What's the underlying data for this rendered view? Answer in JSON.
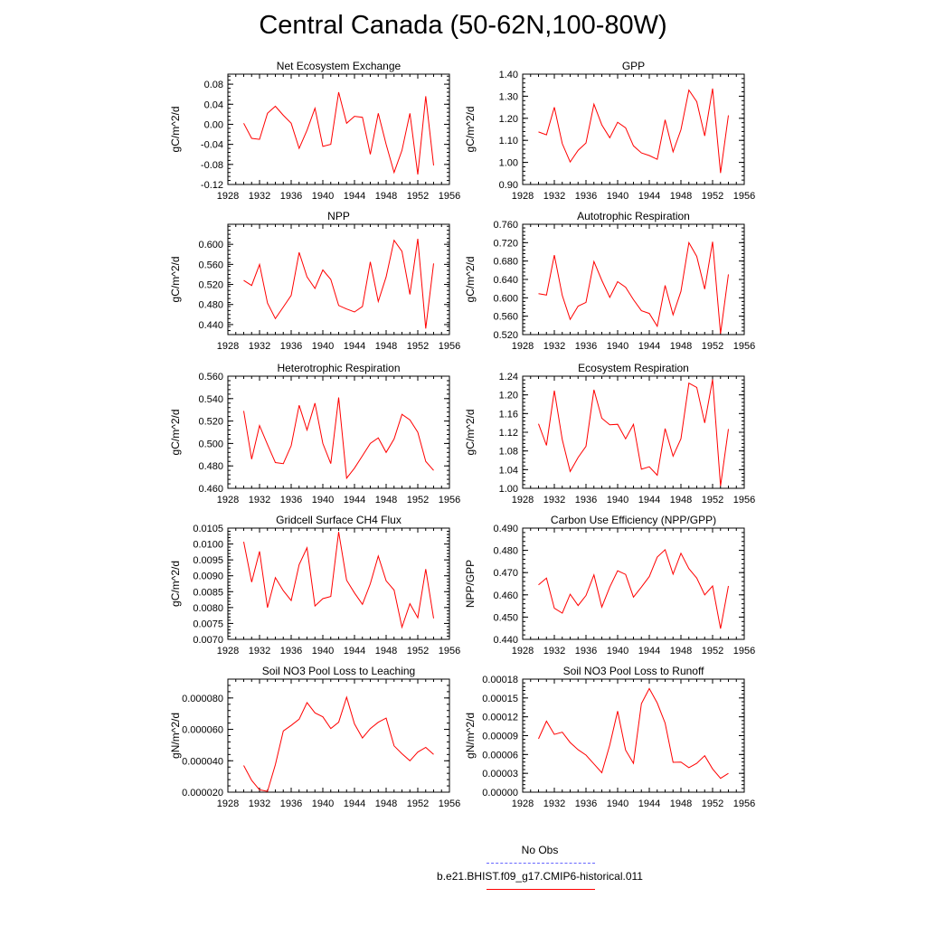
{
  "title": "Central Canada (50-62N,100-80W)",
  "legend": {
    "obs_label": "No Obs",
    "obs_color": "#6666ff",
    "model_label": "b.e21.BHIST.f09_g17.CMIP6-historical.011",
    "model_color": "#ff0000"
  },
  "chart_data": [
    {
      "type": "line",
      "title": "Net Ecosystem Exchange",
      "ylabel": "gC/m^2/d",
      "xlim": [
        1928,
        1956
      ],
      "xticks": [
        "1928",
        "1932",
        "1936",
        "1940",
        "1944",
        "1948",
        "1952",
        "1956"
      ],
      "ylim": [
        -0.12,
        0.1
      ],
      "yticks": [
        "-0.12",
        "-0.08",
        "-0.04",
        "0.00",
        "0.04",
        "0.08"
      ],
      "series": [
        {
          "color": "#ff0000",
          "x": [
            1930,
            1931,
            1932,
            1933,
            1934,
            1935,
            1936,
            1937,
            1938,
            1939,
            1940,
            1941,
            1942,
            1943,
            1944,
            1945,
            1946,
            1947,
            1948,
            1949,
            1950,
            1951,
            1952,
            1953,
            1954
          ],
          "y": [
            0.002,
            -0.028,
            -0.03,
            0.022,
            0.036,
            0.018,
            0.002,
            -0.048,
            -0.012,
            0.032,
            -0.044,
            -0.04,
            0.064,
            0.002,
            0.016,
            0.014,
            -0.06,
            0.022,
            -0.04,
            -0.096,
            -0.052,
            0.022,
            -0.1,
            0.056,
            -0.082
          ]
        }
      ]
    },
    {
      "type": "line",
      "title": "GPP",
      "ylabel": "gC/m^2/d",
      "xlim": [
        1928,
        1956
      ],
      "xticks": [
        "1928",
        "1932",
        "1936",
        "1940",
        "1944",
        "1948",
        "1952",
        "1956"
      ],
      "ylim": [
        0.9,
        1.4
      ],
      "yticks": [
        "0.90",
        "1.00",
        "1.10",
        "1.20",
        "1.30",
        "1.40"
      ],
      "series": [
        {
          "color": "#ff0000",
          "x": [
            1930,
            1931,
            1932,
            1933,
            1934,
            1935,
            1936,
            1937,
            1938,
            1939,
            1940,
            1941,
            1942,
            1943,
            1944,
            1945,
            1946,
            1947,
            1948,
            1949,
            1950,
            1951,
            1952,
            1953,
            1954
          ],
          "y": [
            1.138,
            1.125,
            1.25,
            1.085,
            1.002,
            1.055,
            1.088,
            1.264,
            1.17,
            1.112,
            1.182,
            1.157,
            1.075,
            1.043,
            1.031,
            1.014,
            1.193,
            1.048,
            1.148,
            1.328,
            1.275,
            1.12,
            1.335,
            0.952,
            1.213
          ]
        }
      ]
    },
    {
      "type": "line",
      "title": "NPP",
      "ylabel": "gC/m^2/d",
      "xlim": [
        1928,
        1956
      ],
      "xticks": [
        "1928",
        "1932",
        "1936",
        "1940",
        "1944",
        "1948",
        "1952",
        "1956"
      ],
      "ylim": [
        0.42,
        0.64
      ],
      "yticks": [
        "0.440",
        "0.480",
        "0.520",
        "0.560",
        "0.600"
      ],
      "series": [
        {
          "color": "#ff0000",
          "x": [
            1930,
            1931,
            1932,
            1933,
            1934,
            1935,
            1936,
            1937,
            1938,
            1939,
            1940,
            1941,
            1942,
            1943,
            1944,
            1945,
            1946,
            1947,
            1948,
            1949,
            1950,
            1951,
            1952,
            1953,
            1954
          ],
          "y": [
            0.528,
            0.518,
            0.56,
            0.483,
            0.452,
            0.475,
            0.498,
            0.584,
            0.535,
            0.512,
            0.549,
            0.53,
            0.478,
            0.471,
            0.465,
            0.476,
            0.565,
            0.486,
            0.535,
            0.608,
            0.586,
            0.5,
            0.611,
            0.432,
            0.562
          ]
        }
      ]
    },
    {
      "type": "line",
      "title": "Autotrophic Respiration",
      "ylabel": "gC/m^2/d",
      "xlim": [
        1928,
        1956
      ],
      "xticks": [
        "1928",
        "1932",
        "1936",
        "1940",
        "1944",
        "1948",
        "1952",
        "1956"
      ],
      "ylim": [
        0.52,
        0.76
      ],
      "yticks": [
        "0.520",
        "0.560",
        "0.600",
        "0.640",
        "0.680",
        "0.720",
        "0.760"
      ],
      "series": [
        {
          "color": "#ff0000",
          "x": [
            1930,
            1931,
            1932,
            1933,
            1934,
            1935,
            1936,
            1937,
            1938,
            1939,
            1940,
            1941,
            1942,
            1943,
            1944,
            1945,
            1946,
            1947,
            1948,
            1949,
            1950,
            1951,
            1952,
            1953,
            1954
          ],
          "y": [
            0.609,
            0.606,
            0.693,
            0.605,
            0.553,
            0.582,
            0.59,
            0.679,
            0.638,
            0.601,
            0.635,
            0.623,
            0.596,
            0.572,
            0.566,
            0.538,
            0.627,
            0.563,
            0.614,
            0.72,
            0.69,
            0.619,
            0.722,
            0.522,
            0.651
          ]
        }
      ]
    },
    {
      "type": "line",
      "title": "Heterotrophic Respiration",
      "ylabel": "gC/m^2/d",
      "xlim": [
        1928,
        1956
      ],
      "xticks": [
        "1928",
        "1932",
        "1936",
        "1940",
        "1944",
        "1948",
        "1952",
        "1956"
      ],
      "ylim": [
        0.46,
        0.56
      ],
      "yticks": [
        "0.460",
        "0.480",
        "0.500",
        "0.520",
        "0.540",
        "0.560"
      ],
      "series": [
        {
          "color": "#ff0000",
          "x": [
            1930,
            1931,
            1932,
            1933,
            1934,
            1935,
            1936,
            1937,
            1938,
            1939,
            1940,
            1941,
            1942,
            1943,
            1944,
            1945,
            1946,
            1947,
            1948,
            1949,
            1950,
            1951,
            1952,
            1953,
            1954
          ],
          "y": [
            0.529,
            0.486,
            0.516,
            0.499,
            0.483,
            0.482,
            0.498,
            0.534,
            0.512,
            0.536,
            0.5,
            0.482,
            0.541,
            0.469,
            0.478,
            0.489,
            0.5,
            0.505,
            0.492,
            0.504,
            0.526,
            0.521,
            0.51,
            0.484,
            0.476
          ]
        }
      ]
    },
    {
      "type": "line",
      "title": "Ecosystem Respiration",
      "ylabel": "gC/m^2/d",
      "xlim": [
        1928,
        1956
      ],
      "xticks": [
        "1928",
        "1932",
        "1936",
        "1940",
        "1944",
        "1948",
        "1952",
        "1956"
      ],
      "ylim": [
        1.0,
        1.24
      ],
      "yticks": [
        "1.00",
        "1.04",
        "1.08",
        "1.12",
        "1.16",
        "1.20",
        "1.24"
      ],
      "series": [
        {
          "color": "#ff0000",
          "x": [
            1930,
            1931,
            1932,
            1933,
            1934,
            1935,
            1936,
            1937,
            1938,
            1939,
            1940,
            1941,
            1942,
            1943,
            1944,
            1945,
            1946,
            1947,
            1948,
            1949,
            1950,
            1951,
            1952,
            1953,
            1954
          ],
          "y": [
            1.138,
            1.092,
            1.209,
            1.104,
            1.036,
            1.066,
            1.09,
            1.211,
            1.15,
            1.136,
            1.137,
            1.106,
            1.137,
            1.041,
            1.046,
            1.028,
            1.128,
            1.069,
            1.106,
            1.225,
            1.216,
            1.14,
            1.233,
            1.005,
            1.127
          ]
        }
      ]
    },
    {
      "type": "line",
      "title": "Gridcell Surface CH4 Flux",
      "ylabel": "gC/m^2/d",
      "xlim": [
        1928,
        1956
      ],
      "xticks": [
        "1928",
        "1932",
        "1936",
        "1940",
        "1944",
        "1948",
        "1952",
        "1956"
      ],
      "ylim": [
        0.007,
        0.0105
      ],
      "yticks": [
        "0.0070",
        "0.0075",
        "0.0080",
        "0.0085",
        "0.0090",
        "0.0095",
        "0.0100",
        "0.0105"
      ],
      "series": [
        {
          "color": "#ff0000",
          "x": [
            1930,
            1931,
            1932,
            1933,
            1934,
            1935,
            1936,
            1937,
            1938,
            1939,
            1940,
            1941,
            1942,
            1943,
            1944,
            1945,
            1946,
            1947,
            1948,
            1949,
            1950,
            1951,
            1952,
            1953,
            1954
          ],
          "y": [
            0.01007,
            0.0088,
            0.00977,
            0.008,
            0.00894,
            0.00853,
            0.00822,
            0.00935,
            0.00988,
            0.00805,
            0.00828,
            0.00835,
            0.01038,
            0.00886,
            0.00846,
            0.0081,
            0.00875,
            0.00962,
            0.00884,
            0.00855,
            0.00738,
            0.00812,
            0.00768,
            0.00921,
            0.00766
          ]
        }
      ]
    },
    {
      "type": "line",
      "title": "Carbon Use Efficiency (NPP/GPP)",
      "ylabel": "NPP/GPP",
      "xlim": [
        1928,
        1956
      ],
      "xticks": [
        "1928",
        "1932",
        "1936",
        "1940",
        "1944",
        "1948",
        "1952",
        "1956"
      ],
      "ylim": [
        0.44,
        0.49
      ],
      "yticks": [
        "0.440",
        "0.450",
        "0.460",
        "0.470",
        "0.480",
        "0.490"
      ],
      "series": [
        {
          "color": "#ff0000",
          "x": [
            1930,
            1931,
            1932,
            1933,
            1934,
            1935,
            1936,
            1937,
            1938,
            1939,
            1940,
            1941,
            1942,
            1943,
            1944,
            1945,
            1946,
            1947,
            1948,
            1949,
            1950,
            1951,
            1952,
            1953,
            1954
          ],
          "y": [
            0.4645,
            0.4675,
            0.454,
            0.4518,
            0.4603,
            0.4552,
            0.4597,
            0.469,
            0.4545,
            0.4635,
            0.4708,
            0.4692,
            0.459,
            0.4635,
            0.4682,
            0.477,
            0.4803,
            0.4693,
            0.4787,
            0.4718,
            0.4675,
            0.46,
            0.464,
            0.4448,
            0.464
          ]
        }
      ]
    },
    {
      "type": "line",
      "title": "Soil NO3 Pool Loss to Leaching",
      "ylabel": "gN/m^2/d",
      "xlim": [
        1928,
        1956
      ],
      "xticks": [
        "1928",
        "1932",
        "1936",
        "1940",
        "1944",
        "1948",
        "1952",
        "1956"
      ],
      "ylim": [
        2e-05,
        9.2e-05
      ],
      "yticks": [
        "0.000020",
        "0.000040",
        "0.000060",
        "0.000080"
      ],
      "series": [
        {
          "color": "#ff0000",
          "x": [
            1930,
            1931,
            1932,
            1933,
            1934,
            1935,
            1936,
            1937,
            1938,
            1939,
            1940,
            1941,
            1942,
            1943,
            1944,
            1945,
            1946,
            1947,
            1948,
            1949,
            1950,
            1951,
            1952,
            1953,
            1954
          ],
          "y": [
            3.7e-05,
            2.75e-05,
            2.15e-05,
            2.05e-05,
            3.75e-05,
            5.9e-05,
            6.25e-05,
            6.65e-05,
            7.7e-05,
            7.05e-05,
            6.8e-05,
            6.05e-05,
            6.45e-05,
            8.05e-05,
            6.35e-05,
            5.45e-05,
            6.05e-05,
            6.45e-05,
            6.72e-05,
            4.95e-05,
            4.45e-05,
            4e-05,
            4.55e-05,
            4.85e-05,
            4.4e-05
          ]
        }
      ]
    },
    {
      "type": "line",
      "title": "Soil NO3 Pool Loss to Runoff",
      "ylabel": "gN/m^2/d",
      "xlim": [
        1928,
        1956
      ],
      "xticks": [
        "1928",
        "1932",
        "1936",
        "1940",
        "1944",
        "1948",
        "1952",
        "1956"
      ],
      "ylim": [
        0,
        0.00018
      ],
      "yticks": [
        "0.00000",
        "0.00003",
        "0.00006",
        "0.00009",
        "0.00012",
        "0.00015",
        "0.00018"
      ],
      "series": [
        {
          "color": "#ff0000",
          "x": [
            1930,
            1931,
            1932,
            1933,
            1934,
            1935,
            1936,
            1937,
            1938,
            1939,
            1940,
            1941,
            1942,
            1943,
            1944,
            1945,
            1946,
            1947,
            1948,
            1949,
            1950,
            1951,
            1952,
            1953,
            1954
          ],
          "y": [
            8.5e-05,
            0.000113,
            9.2e-05,
            9.55e-05,
            7.9e-05,
            6.75e-05,
            5.9e-05,
            4.5e-05,
            3.1e-05,
            7.5e-05,
            0.000129,
            6.7e-05,
            4.6e-05,
            0.000141,
            0.000165,
            0.000142,
            0.00011,
            4.75e-05,
            4.8e-05,
            3.9e-05,
            4.6e-05,
            5.8e-05,
            3.7e-05,
            2.2e-05,
            3e-05
          ]
        }
      ]
    }
  ]
}
